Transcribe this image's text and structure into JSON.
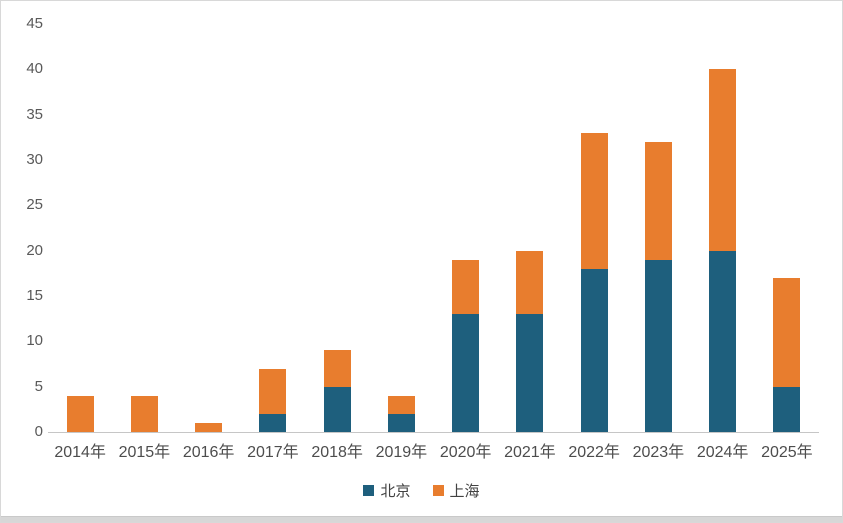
{
  "chart_data": {
    "type": "bar",
    "stacked": true,
    "title": "",
    "xlabel": "",
    "ylabel": "",
    "categories": [
      "2014年",
      "2015年",
      "2016年",
      "2017年",
      "2018年",
      "2019年",
      "2020年",
      "2021年",
      "2022年",
      "2023年",
      "2024年",
      "2025年"
    ],
    "series": [
      {
        "name": "北京",
        "color": "#1E5F7D",
        "values": [
          0,
          0,
          0,
          2,
          5,
          2,
          13,
          13,
          18,
          19,
          20,
          5
        ]
      },
      {
        "name": "上海",
        "color": "#E87D2E",
        "values": [
          4,
          4,
          1,
          5,
          4,
          2,
          6,
          7,
          15,
          13,
          20,
          12
        ]
      }
    ],
    "totals": [
      4,
      4,
      1,
      7,
      9,
      4,
      19,
      20,
      33,
      32,
      40,
      17
    ],
    "ylim": [
      0,
      45
    ],
    "yticks": [
      0,
      5,
      10,
      15,
      20,
      25,
      30,
      35,
      40,
      45
    ],
    "grid": false,
    "legend_position": "bottom"
  },
  "colors": {
    "axis_line": "#C6C6C6",
    "tick_text": "#595959",
    "frame_border": "#D8D8D8",
    "bottom_strip": "#D7D7D7",
    "beijing": "#1E5F7D",
    "shanghai": "#E87D2E"
  }
}
